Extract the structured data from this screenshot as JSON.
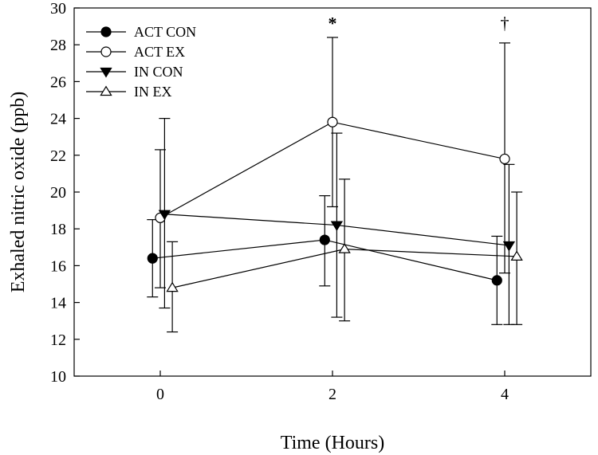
{
  "chart_data": {
    "type": "line",
    "xlabel": "Time (Hours)",
    "ylabel": "Exhaled nitric oxide (ppb)",
    "xlim": [
      -1,
      5
    ],
    "ylim": [
      10,
      30
    ],
    "x_ticks": [
      0,
      2,
      4
    ],
    "y_ticks": [
      10,
      12,
      14,
      16,
      18,
      20,
      22,
      24,
      26,
      28,
      30
    ],
    "grid": false,
    "legend": "top-left",
    "series": [
      {
        "name": "ACT CON",
        "marker": "filled-circle",
        "x_offset": -0.09,
        "x": [
          0,
          2,
          4
        ],
        "y": [
          16.4,
          17.4,
          15.2
        ],
        "err_upper": [
          18.5,
          19.8,
          17.6
        ],
        "err_lower": [
          14.3,
          14.9,
          12.8
        ]
      },
      {
        "name": "ACT EX",
        "marker": "open-circle",
        "x_offset": 0.0,
        "x": [
          0,
          2,
          4
        ],
        "y": [
          18.6,
          23.8,
          21.8
        ],
        "err_upper": [
          22.3,
          28.4,
          28.1
        ],
        "err_lower": [
          14.8,
          19.2,
          15.6
        ]
      },
      {
        "name": "IN CON",
        "marker": "filled-triangle-down",
        "x_offset": 0.05,
        "x": [
          0,
          2,
          4
        ],
        "y": [
          18.8,
          18.2,
          17.1
        ],
        "err_upper": [
          24.0,
          23.2,
          21.5
        ],
        "err_lower": [
          13.7,
          13.2,
          12.8
        ]
      },
      {
        "name": "IN EX",
        "marker": "open-triangle-up",
        "x_offset": 0.14,
        "x": [
          0,
          2,
          4
        ],
        "y": [
          14.8,
          16.9,
          16.5
        ],
        "err_upper": [
          17.3,
          20.7,
          20.0
        ],
        "err_lower": [
          12.4,
          13.0,
          12.8
        ]
      }
    ],
    "annotations": [
      {
        "text": "*",
        "x": 2,
        "y": 29.2
      },
      {
        "text": "†",
        "x": 4,
        "y": 29.2
      }
    ]
  }
}
